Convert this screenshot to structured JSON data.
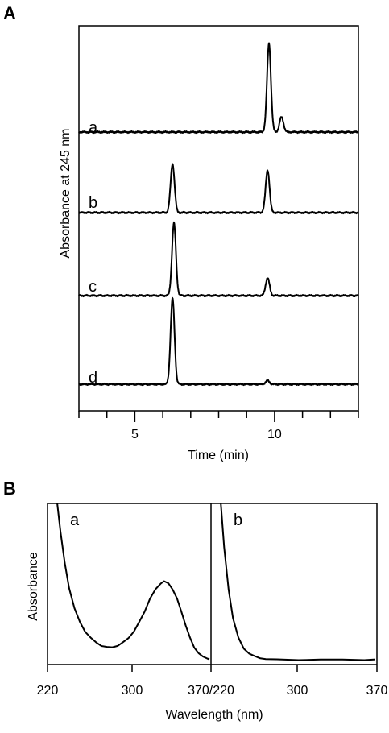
{
  "figure": {
    "panel_a_label": "A",
    "panel_b_label": "B"
  },
  "chart_data": [
    {
      "type": "line",
      "panel": "A",
      "xlabel": "Time (min)",
      "ylabel": "Absorbance at 245 nm",
      "xlim": [
        3,
        13
      ],
      "xticks_major": [
        5,
        10
      ],
      "xticks_minor": [
        3,
        4,
        6,
        7,
        8,
        9,
        11,
        12,
        13
      ],
      "series": [
        {
          "name": "a",
          "baseline": 0,
          "peaks": [
            {
              "x": 9.8,
              "height": 1.0,
              "width": 0.07
            },
            {
              "x": 10.25,
              "height": 0.17,
              "width": 0.07
            }
          ]
        },
        {
          "name": "b",
          "baseline": 0,
          "peaks": [
            {
              "x": 6.35,
              "height": 0.55,
              "width": 0.07
            },
            {
              "x": 9.75,
              "height": 0.48,
              "width": 0.07
            }
          ]
        },
        {
          "name": "c",
          "baseline": 0,
          "peaks": [
            {
              "x": 6.4,
              "height": 0.82,
              "width": 0.07
            },
            {
              "x": 9.75,
              "height": 0.2,
              "width": 0.07
            }
          ]
        },
        {
          "name": "d",
          "baseline": 0,
          "peaks": [
            {
              "x": 6.35,
              "height": 0.97,
              "width": 0.07
            },
            {
              "x": 9.75,
              "height": 0.04,
              "width": 0.07
            }
          ]
        }
      ]
    },
    {
      "type": "line",
      "panel": "B",
      "xlabel": "Wavelength (nm)",
      "ylabel": "Absorbance",
      "xtick_labels": [
        "220",
        "300",
        "370/220",
        "300",
        "370"
      ],
      "subplots": [
        {
          "name": "a",
          "xlim": [
            220,
            370
          ],
          "x": [
            229,
            232,
            236,
            240,
            245,
            250,
            255,
            260,
            265,
            270,
            275,
            280,
            285,
            290,
            295,
            300,
            305,
            310,
            315,
            320,
            325,
            328,
            332,
            336,
            340,
            344,
            348,
            352,
            356,
            360,
            364,
            368,
            370
          ],
          "y": [
            1.0,
            0.82,
            0.62,
            0.46,
            0.33,
            0.24,
            0.18,
            0.14,
            0.11,
            0.09,
            0.08,
            0.08,
            0.09,
            0.11,
            0.14,
            0.18,
            0.24,
            0.31,
            0.39,
            0.45,
            0.49,
            0.5,
            0.49,
            0.45,
            0.39,
            0.31,
            0.22,
            0.14,
            0.08,
            0.04,
            0.02,
            0.01,
            0.0
          ]
        },
        {
          "name": "b",
          "xlim": [
            220,
            370
          ],
          "x": [
            229,
            232,
            236,
            240,
            245,
            250,
            255,
            260,
            265,
            270,
            280,
            300,
            320,
            340,
            360,
            370
          ],
          "y": [
            1.0,
            0.72,
            0.45,
            0.27,
            0.14,
            0.07,
            0.04,
            0.02,
            0.01,
            0.005,
            0.0,
            0.0,
            0.0,
            0.0,
            0.0,
            0.0
          ]
        }
      ]
    }
  ]
}
